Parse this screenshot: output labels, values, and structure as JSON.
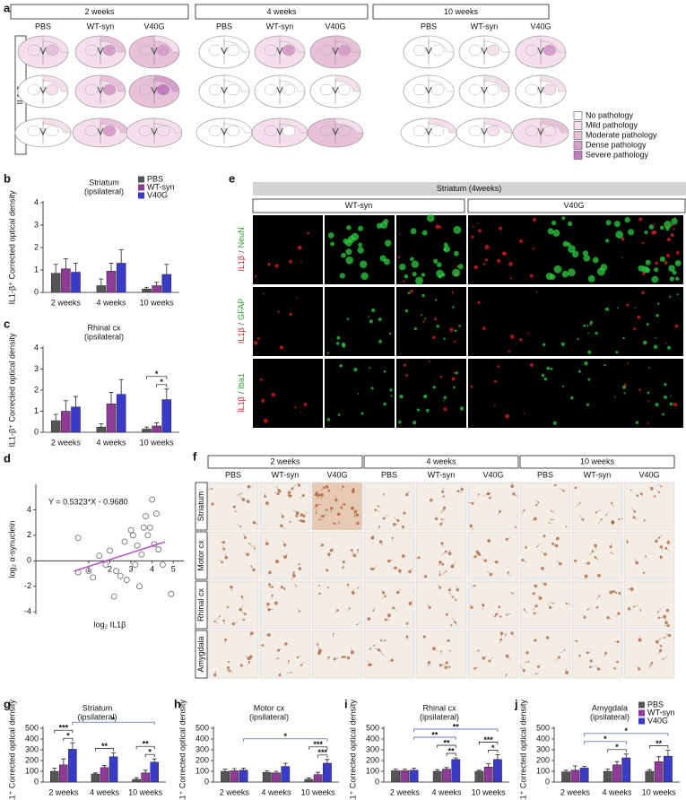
{
  "panel_a": {
    "label": "a",
    "time_groups": [
      "2 weeks",
      "4 weeks",
      "10 weeks"
    ],
    "conditions": [
      "PBS",
      "WT-syn",
      "V40G"
    ],
    "stain": "IL1-β",
    "legend": [
      {
        "label": "No pathology",
        "color": "#ffffff"
      },
      {
        "label": "Mild pathology",
        "color": "#f4dfea"
      },
      {
        "label": "Moderate pathology",
        "color": "#e8c0da"
      },
      {
        "label": "Dense pathology",
        "color": "#d79dcb"
      },
      {
        "label": "Severe pathology",
        "color": "#c07cbc"
      }
    ],
    "severity": [
      [
        [
          1,
          2,
          1
        ],
        [
          2,
          3,
          1
        ],
        [
          1,
          3,
          2
        ],
        [
          0,
          0,
          0
        ],
        [
          1,
          3,
          1
        ],
        [
          2,
          3,
          2
        ],
        [
          0,
          0,
          0
        ],
        [
          0,
          1,
          0
        ],
        [
          1,
          3,
          1
        ]
      ],
      [
        [
          1,
          1,
          0
        ],
        [
          2,
          3,
          1
        ],
        [
          3,
          4,
          2
        ],
        [
          0,
          0,
          0
        ],
        [
          0,
          0,
          0
        ],
        [
          1,
          0,
          0
        ],
        [
          0,
          0,
          0
        ],
        [
          1,
          0,
          0
        ],
        [
          1,
          1,
          0
        ]
      ],
      [
        [
          1,
          0,
          0
        ],
        [
          2,
          3,
          1
        ],
        [
          1,
          1,
          1
        ],
        [
          0,
          0,
          0
        ],
        [
          1,
          0,
          1
        ],
        [
          1,
          2,
          2
        ],
        [
          1,
          0,
          0
        ],
        [
          1,
          1,
          0
        ],
        [
          2,
          1,
          1
        ]
      ]
    ]
  },
  "panel_e": {
    "label": "e",
    "title": "Striatum (4weeks)",
    "conditions": [
      "WT-syn",
      "V40G"
    ],
    "stains": [
      [
        "IL1β",
        "NeuN"
      ],
      [
        "IL1β",
        "GFAP"
      ],
      [
        "IL1β",
        "Iba1"
      ]
    ],
    "separator": "/"
  },
  "panel_f": {
    "label": "f",
    "time_groups": [
      "2 weeks",
      "4 weeks",
      "10 weeks"
    ],
    "conditions": [
      "PBS",
      "WT-syn",
      "V40G"
    ],
    "regions": [
      "Striatum",
      "Motor cx",
      "Rhinal cx",
      "Amygdala"
    ]
  },
  "chart_data": [
    {
      "type": "bar",
      "panel": "b",
      "title": "Striatum",
      "subtitle": "(ipsilateral)",
      "y_label": "IL1-β⁺ Corrected optical density",
      "categories": [
        "2 weeks",
        "4 weeks",
        "10 weeks"
      ],
      "series": [
        {
          "name": "PBS",
          "color": "#555555",
          "values": [
            0.85,
            0.3,
            0.15
          ],
          "errors": [
            0.4,
            0.3,
            0.08
          ]
        },
        {
          "name": "WT-syn",
          "color": "#8e3a96",
          "values": [
            1.05,
            0.95,
            0.3
          ],
          "errors": [
            0.45,
            0.35,
            0.15
          ]
        },
        {
          "name": "V40G",
          "color": "#3a3ac8",
          "values": [
            0.9,
            1.3,
            0.8
          ],
          "errors": [
            0.4,
            0.6,
            0.45
          ]
        }
      ],
      "ylim": [
        0,
        4
      ],
      "yticks": [
        0,
        1,
        2,
        3,
        4
      ],
      "legend": "top-right",
      "annotations": []
    },
    {
      "type": "bar",
      "panel": "c",
      "title": "Rhinal cx",
      "subtitle": "(ipsilateral)",
      "y_label": "IL1-β⁺ Corrected optical density",
      "categories": [
        "2 weeks",
        "4 weeks",
        "10 weeks"
      ],
      "series": [
        {
          "color": "#555555",
          "values": [
            0.55,
            0.25,
            0.15
          ],
          "errors": [
            0.3,
            0.15,
            0.1
          ]
        },
        {
          "color": "#8e3a96",
          "values": [
            1.0,
            1.35,
            0.3
          ],
          "errors": [
            0.5,
            0.55,
            0.15
          ]
        },
        {
          "color": "#3a3ac8",
          "values": [
            1.2,
            1.8,
            1.55
          ],
          "errors": [
            0.5,
            0.7,
            0.5
          ]
        }
      ],
      "ylim": [
        0,
        4
      ],
      "yticks": [
        0,
        1,
        2,
        3,
        4
      ],
      "annotations": [
        {
          "label": "*",
          "from": [
            2,
            1
          ],
          "to": [
            2,
            2
          ],
          "color": "#111111"
        },
        {
          "label": "*",
          "from": [
            2,
            0
          ],
          "to": [
            2,
            2
          ],
          "color": "#111111"
        }
      ]
    },
    {
      "type": "scatter",
      "panel": "d",
      "x_label": "log₂ IL1β",
      "y_label": "log₂ α-synuclein",
      "x": [
        0.5,
        0.5,
        1.0,
        1.2,
        1.5,
        1.8,
        2.0,
        2.2,
        2.3,
        2.5,
        2.7,
        2.8,
        3.0,
        3.1,
        3.2,
        3.3,
        3.4,
        3.5,
        3.6,
        3.7,
        3.8,
        3.9,
        4.0,
        4.1,
        4.2,
        4.3,
        4.5,
        4.9
      ],
      "y": [
        1.8,
        -0.9,
        -0.8,
        -1.3,
        0.4,
        -0.3,
        0.8,
        -2.8,
        -0.8,
        -1.2,
        1.5,
        -1.5,
        2.4,
        2.0,
        -0.3,
        1.2,
        -2.0,
        0.5,
        2.6,
        3.5,
        2.0,
        2.6,
        4.8,
        1.3,
        3.7,
        0.9,
        -0.3,
        -2.6
      ],
      "color": "#777777",
      "fit": {
        "label": "Y = 0.5323*X - 0.9680",
        "slope": 0.5323,
        "intercept": -0.968,
        "x_range": [
          0.3,
          4.6
        ],
        "color": "#b44fc4"
      },
      "xlim": [
        -1.5,
        5.5
      ],
      "ylim": [
        -4.2,
        6
      ],
      "xticks": [
        1,
        2,
        3,
        4,
        5
      ],
      "yticks": [
        -4,
        -2,
        0,
        2,
        4
      ]
    },
    {
      "type": "bar",
      "panel": "g",
      "title": "Striatum",
      "subtitle": "(ipsilateral)",
      "y_label": "Iba1⁺ Corrected optical density",
      "categories": [
        "2 weeks",
        "4 weeks",
        "10 weeks"
      ],
      "series": [
        {
          "color": "#555555",
          "values": [
            100,
            75,
            25
          ],
          "errors": [
            30,
            10,
            15
          ]
        },
        {
          "color": "#8e3a96",
          "values": [
            160,
            135,
            85
          ],
          "errors": [
            55,
            20,
            25
          ]
        },
        {
          "color": "#3a3ac8",
          "values": [
            305,
            235,
            185
          ],
          "errors": [
            60,
            35,
            30
          ]
        }
      ],
      "ylim": [
        0,
        500
      ],
      "yticks": [
        0,
        100,
        200,
        300,
        400,
        500
      ],
      "annotations": [
        {
          "label": "*",
          "from": [
            0,
            1
          ],
          "to": [
            0,
            2
          ],
          "color": "#111111"
        },
        {
          "label": "***",
          "from": [
            0,
            0
          ],
          "to": [
            0,
            2
          ],
          "color": "#111111"
        },
        {
          "label": "**",
          "from": [
            1,
            0
          ],
          "to": [
            1,
            2
          ],
          "color": "#111111"
        },
        {
          "label": "*",
          "from": [
            2,
            1
          ],
          "to": [
            2,
            2
          ],
          "color": "#111111"
        },
        {
          "label": "**",
          "from": [
            2,
            0
          ],
          "to": [
            2,
            2
          ],
          "color": "#111111"
        },
        {
          "label": "*",
          "from": [
            0,
            2
          ],
          "to": [
            2,
            2
          ],
          "color": "#2f52a8"
        }
      ]
    },
    {
      "type": "bar",
      "panel": "h",
      "title": "Motor cx",
      "subtitle": "(ipsilateral)",
      "y_label": "Iba1⁺ Corrected optical density",
      "categories": [
        "2 weeks",
        "4 weeks",
        "10 weeks"
      ],
      "series": [
        {
          "color": "#555555",
          "values": [
            100,
            90,
            25
          ],
          "errors": [
            20,
            15,
            12
          ]
        },
        {
          "color": "#8e3a96",
          "values": [
            105,
            85,
            70
          ],
          "errors": [
            20,
            15,
            20
          ]
        },
        {
          "color": "#3a3ac8",
          "values": [
            110,
            145,
            175
          ],
          "errors": [
            20,
            30,
            35
          ]
        }
      ],
      "ylim": [
        0,
        500
      ],
      "yticks": [
        0,
        100,
        200,
        300,
        400,
        500
      ],
      "annotations": [
        {
          "label": "***",
          "from": [
            2,
            1
          ],
          "to": [
            2,
            2
          ],
          "color": "#111111"
        },
        {
          "label": "***",
          "from": [
            2,
            0
          ],
          "to": [
            2,
            2
          ],
          "color": "#111111"
        },
        {
          "label": "*",
          "from": [
            0,
            2
          ],
          "to": [
            2,
            2
          ],
          "color": "#2f52a8"
        }
      ]
    },
    {
      "type": "bar",
      "panel": "i",
      "title": "Rhinal cx",
      "subtitle": "(ipsilateral)",
      "y_label": "Iba1⁺ Corrected optical density",
      "categories": [
        "2 weeks",
        "4 weeks",
        "10 weeks"
      ],
      "series": [
        {
          "color": "#555555",
          "values": [
            105,
            100,
            100
          ],
          "errors": [
            15,
            15,
            10
          ]
        },
        {
          "color": "#8e3a96",
          "values": [
            105,
            120,
            140
          ],
          "errors": [
            15,
            15,
            30
          ]
        },
        {
          "color": "#3a3ac8",
          "values": [
            110,
            210,
            210
          ],
          "errors": [
            20,
            15,
            45
          ]
        }
      ],
      "ylim": [
        0,
        500
      ],
      "yticks": [
        0,
        100,
        200,
        300,
        400,
        500
      ],
      "annotations": [
        {
          "label": "**",
          "from": [
            1,
            1
          ],
          "to": [
            1,
            2
          ],
          "color": "#111111"
        },
        {
          "label": "**",
          "from": [
            1,
            0
          ],
          "to": [
            1,
            2
          ],
          "color": "#111111"
        },
        {
          "label": "*",
          "from": [
            2,
            1
          ],
          "to": [
            2,
            2
          ],
          "color": "#111111"
        },
        {
          "label": "***",
          "from": [
            2,
            0
          ],
          "to": [
            2,
            2
          ],
          "color": "#111111"
        },
        {
          "label": "**",
          "from": [
            0,
            2
          ],
          "to": [
            1,
            2
          ],
          "color": "#2f52a8"
        },
        {
          "label": "**",
          "from": [
            0,
            2
          ],
          "to": [
            2,
            2
          ],
          "color": "#2f52a8"
        }
      ]
    },
    {
      "type": "bar",
      "panel": "j",
      "title": "Amygdala",
      "subtitle": "(ipsilateral)",
      "y_label": "Iba1⁺ Corrected optical density",
      "categories": [
        "2 weeks",
        "4 weeks",
        "10 weeks"
      ],
      "series": [
        {
          "name": "PBS",
          "color": "#555555",
          "values": [
            95,
            100,
            100
          ],
          "errors": [
            15,
            20,
            15
          ]
        },
        {
          "name": "WT-syn",
          "color": "#8e3a96",
          "values": [
            110,
            160,
            190
          ],
          "errors": [
            40,
            30,
            45
          ]
        },
        {
          "name": "V40G",
          "color": "#3a3ac8",
          "values": [
            130,
            225,
            240
          ],
          "errors": [
            15,
            35,
            55
          ]
        }
      ],
      "ylim": [
        0,
        500
      ],
      "yticks": [
        0,
        100,
        200,
        300,
        400,
        500
      ],
      "legend": "top-right",
      "annotations": [
        {
          "label": "*",
          "from": [
            1,
            0
          ],
          "to": [
            1,
            2
          ],
          "color": "#111111"
        },
        {
          "label": "**",
          "from": [
            2,
            0
          ],
          "to": [
            2,
            2
          ],
          "color": "#111111"
        },
        {
          "label": "*",
          "from": [
            0,
            2
          ],
          "to": [
            1,
            2
          ],
          "color": "#2f52a8"
        },
        {
          "label": "*",
          "from": [
            0,
            2
          ],
          "to": [
            2,
            2
          ],
          "color": "#2f52a8"
        }
      ]
    }
  ]
}
